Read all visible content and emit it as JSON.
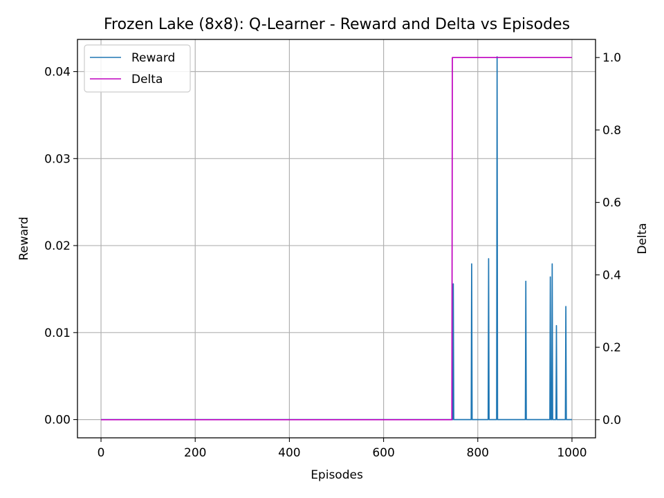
{
  "chart_data": {
    "type": "line",
    "title": "Frozen Lake (8x8): Q-Learner - Reward and Delta vs Episodes",
    "xlabel": "Episodes",
    "ylabel": "Reward",
    "y2label": "Delta",
    "xlim": [
      -50,
      1050
    ],
    "ylim": [
      -0.0021,
      0.0437
    ],
    "y2lim": [
      -0.05,
      1.05
    ],
    "xticks": [
      0,
      200,
      400,
      600,
      800,
      1000
    ],
    "xtick_labels": [
      "0",
      "200",
      "400",
      "600",
      "800",
      "1000"
    ],
    "yticks": [
      0.0,
      0.01,
      0.02,
      0.03,
      0.04
    ],
    "ytick_labels": [
      "0.00",
      "0.01",
      "0.02",
      "0.03",
      "0.04"
    ],
    "y2ticks": [
      0.0,
      0.2,
      0.4,
      0.6,
      0.8,
      1.0
    ],
    "y2tick_labels": [
      "0.0",
      "0.2",
      "0.4",
      "0.6",
      "0.8",
      "1.0"
    ],
    "grid": true,
    "legend_position": "top-left",
    "series": [
      {
        "name": "Reward",
        "axis": "left",
        "color": "#1f77b4",
        "x": [
          0,
          747,
          748,
          749,
          786,
          787,
          788,
          822,
          823,
          824,
          840,
          841,
          842,
          901,
          902,
          903,
          953,
          954,
          955,
          957,
          958,
          959,
          966,
          967,
          968,
          986,
          987,
          988,
          1000
        ],
        "y": [
          0,
          0,
          0.0156,
          0,
          0,
          0.0179,
          0,
          0,
          0.0185,
          0,
          0,
          0.0417,
          0,
          0,
          0.0159,
          0,
          0,
          0.0164,
          0,
          0,
          0.0179,
          0,
          0,
          0.0108,
          0,
          0,
          0.013,
          0,
          0
        ]
      },
      {
        "name": "Delta",
        "axis": "right",
        "color": "#bf00bf",
        "x": [
          0,
          745,
          746,
          1000
        ],
        "y": [
          0,
          0,
          1,
          1
        ]
      }
    ]
  }
}
